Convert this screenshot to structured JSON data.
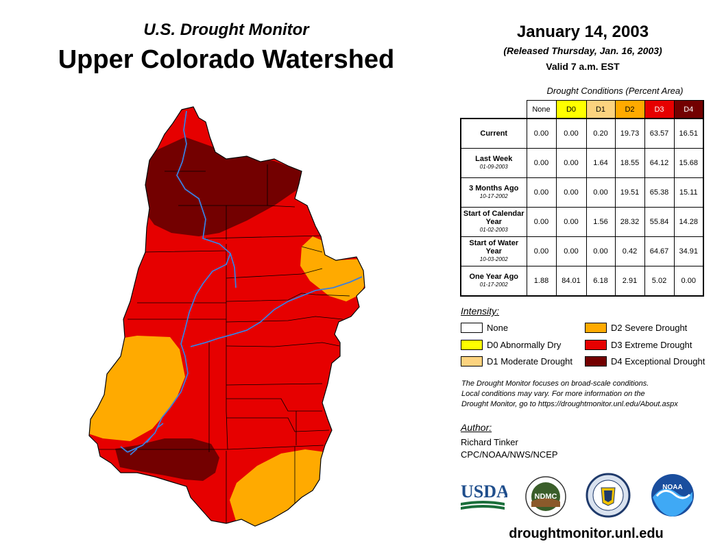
{
  "header": {
    "subtitle": "U.S. Drought Monitor",
    "title": "Upper Colorado Watershed",
    "date": "January 14, 2003",
    "released": "(Released Thursday, Jan. 16, 2003)",
    "valid": "Valid 7 a.m. EST"
  },
  "table": {
    "caption": "Drought Conditions (Percent Area)",
    "columns": [
      "None",
      "D0",
      "D1",
      "D2",
      "D3",
      "D4"
    ],
    "column_colors": [
      "#ffffff",
      "#ffff00",
      "#fcd37f",
      "#ffaa00",
      "#e60000",
      "#730000"
    ],
    "rows": [
      {
        "label": "Current",
        "date": "",
        "values": [
          "0.00",
          "0.00",
          "0.20",
          "19.73",
          "63.57",
          "16.51"
        ]
      },
      {
        "label": "Last Week",
        "date": "01-09-2003",
        "values": [
          "0.00",
          "0.00",
          "1.64",
          "18.55",
          "64.12",
          "15.68"
        ]
      },
      {
        "label": "3 Months Ago",
        "date": "10-17-2002",
        "values": [
          "0.00",
          "0.00",
          "0.00",
          "19.51",
          "65.38",
          "15.11"
        ]
      },
      {
        "label": "Start of Calendar Year",
        "date": "01-02-2003",
        "values": [
          "0.00",
          "0.00",
          "1.56",
          "28.32",
          "55.84",
          "14.28"
        ]
      },
      {
        "label": "Start of Water Year",
        "date": "10-03-2002",
        "values": [
          "0.00",
          "0.00",
          "0.00",
          "0.42",
          "64.67",
          "34.91"
        ]
      },
      {
        "label": "One Year Ago",
        "date": "01-17-2002",
        "values": [
          "1.88",
          "84.01",
          "6.18",
          "2.91",
          "5.02",
          "0.00"
        ]
      }
    ]
  },
  "legend": {
    "title": "Intensity:",
    "items": [
      {
        "label": "None",
        "color": "#ffffff"
      },
      {
        "label": "D0 Abnormally Dry",
        "color": "#ffff00"
      },
      {
        "label": "D1 Moderate Drought",
        "color": "#fcd37f"
      },
      {
        "label": "D2 Severe Drought",
        "color": "#ffaa00"
      },
      {
        "label": "D3 Extreme Drought",
        "color": "#e60000"
      },
      {
        "label": "D4 Exceptional Drought",
        "color": "#730000"
      }
    ]
  },
  "note": [
    "The Drought Monitor focuses on broad-scale conditions.",
    "Local conditions may vary. For more information on the",
    "Drought Monitor, go to https://droughtmonitor.unl.edu/About.aspx"
  ],
  "author": {
    "title": "Author:",
    "name": "Richard Tinker",
    "org": "CPC/NOAA/NWS/NCEP"
  },
  "logos": {
    "usda": "USDA",
    "ndmc": "NDMC",
    "noaa": "NOAA"
  },
  "website": "droughtmonitor.unl.edu",
  "map": {
    "river_color": "#3a7fe0",
    "boundary_color": "#000000"
  }
}
